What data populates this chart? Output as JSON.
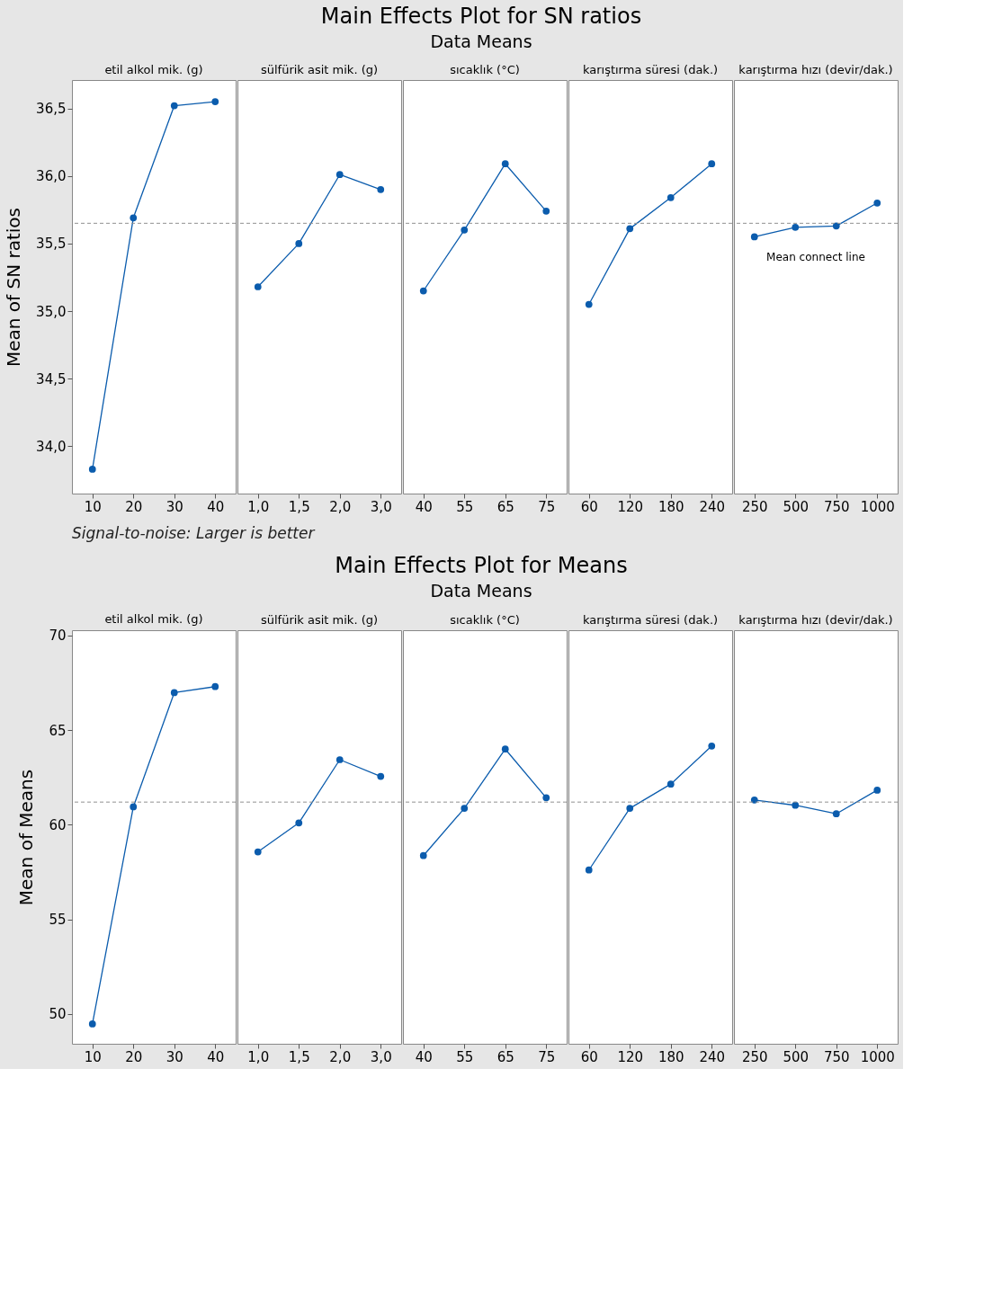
{
  "chart_data": [
    {
      "type": "other",
      "title": "Main Effects Plot for SN ratios",
      "subtitle": "Data Means",
      "annotations": [
        "Signal-to-noise: Larger is better"
      ]
    },
    {
      "type": "line",
      "title": "etil alkol mik. (g)",
      "ylabel": "Mean of SN ratios",
      "categories": [
        "10",
        "20",
        "30",
        "40"
      ],
      "series": [
        {
          "color": "#0b5cad",
          "values": [
            33.83,
            35.69,
            36.52,
            36.55
          ]
        }
      ],
      "marker": "circle",
      "ylim": [
        33.65,
        36.71
      ],
      "yticks": [
        {
          "value": 34.0,
          "label": "34,0"
        },
        {
          "value": 34.5,
          "label": "34,5"
        },
        {
          "value": 35.0,
          "label": "35,0"
        },
        {
          "value": 35.5,
          "label": "35,5"
        },
        {
          "value": 36.0,
          "label": "36,0"
        },
        {
          "value": 36.5,
          "label": "36,5"
        }
      ],
      "ref_lines": [
        {
          "axis": "y",
          "value": 35.65,
          "color": "#909090",
          "line_style": "dashed"
        }
      ]
    },
    {
      "type": "line",
      "title": "sülfürik asit mik. (g)",
      "categories": [
        "1,0",
        "1,5",
        "2,0",
        "3,0"
      ],
      "series": [
        {
          "color": "#0b5cad",
          "values": [
            35.18,
            35.5,
            36.01,
            35.9
          ]
        }
      ],
      "marker": "circle",
      "ylim": [
        33.65,
        36.71
      ],
      "tick_labels": "x",
      "ref_lines": [
        {
          "axis": "y",
          "value": 35.65,
          "color": "#909090",
          "line_style": "dashed"
        }
      ]
    },
    {
      "type": "line",
      "title": "sıcaklık (°C)",
      "categories": [
        "40",
        "55",
        "65",
        "75"
      ],
      "series": [
        {
          "color": "#0b5cad",
          "values": [
            35.15,
            35.6,
            36.09,
            35.74
          ]
        }
      ],
      "marker": "circle",
      "ylim": [
        33.65,
        36.71
      ],
      "tick_labels": "x",
      "ref_lines": [
        {
          "axis": "y",
          "value": 35.65,
          "color": "#909090",
          "line_style": "dashed"
        }
      ]
    },
    {
      "type": "line",
      "title": "karıştırma süresi (dak.)",
      "categories": [
        "60",
        "120",
        "180",
        "240"
      ],
      "series": [
        {
          "color": "#0b5cad",
          "values": [
            35.05,
            35.61,
            35.84,
            36.09
          ]
        }
      ],
      "marker": "circle",
      "ylim": [
        33.65,
        36.71
      ],
      "tick_labels": "x",
      "ref_lines": [
        {
          "axis": "y",
          "value": 35.65,
          "color": "#909090",
          "line_style": "dashed"
        }
      ]
    },
    {
      "type": "line",
      "title": "karıştırma hızı (devir/dak.)",
      "categories": [
        "250",
        "500",
        "750",
        "1000"
      ],
      "series": [
        {
          "color": "#0b5cad",
          "values": [
            35.55,
            35.62,
            35.63,
            35.8
          ]
        }
      ],
      "marker": "circle",
      "ylim": [
        33.65,
        36.71
      ],
      "tick_labels": "x",
      "ref_lines": [
        {
          "axis": "y",
          "value": 35.65,
          "color": "#909090",
          "line_style": "dashed",
          "label": "Mean connect line"
        }
      ]
    },
    {
      "type": "other",
      "title": "Main Effects Plot for Means",
      "subtitle": "Data Means"
    },
    {
      "type": "line",
      "title": "etil alkol mik. (g)",
      "ylabel": "Mean of Means",
      "categories": [
        "10",
        "20",
        "30",
        "40"
      ],
      "series": [
        {
          "color": "#0b5cad",
          "values": [
            49.48,
            60.95,
            66.98,
            67.3
          ]
        }
      ],
      "marker": "circle",
      "ylim": [
        48.43,
        70.28
      ],
      "yticks": [
        50,
        55,
        60,
        65,
        70
      ],
      "ref_lines": [
        {
          "axis": "y",
          "value": 61.2,
          "color": "#909090",
          "line_style": "dashed"
        }
      ]
    },
    {
      "type": "line",
      "title": "sülfürik asit mik. (g)",
      "categories": [
        "1,0",
        "1,5",
        "2,0",
        "3,0"
      ],
      "series": [
        {
          "color": "#0b5cad",
          "values": [
            58.57,
            60.1,
            63.44,
            62.56
          ]
        }
      ],
      "marker": "circle",
      "ylim": [
        48.43,
        70.28
      ],
      "tick_labels": "x",
      "ref_lines": [
        {
          "axis": "y",
          "value": 61.2,
          "color": "#909090",
          "line_style": "dashed"
        }
      ]
    },
    {
      "type": "line",
      "title": "sıcaklık (°C)",
      "categories": [
        "40",
        "55",
        "65",
        "75"
      ],
      "series": [
        {
          "color": "#0b5cad",
          "values": [
            58.37,
            60.87,
            64.0,
            61.43
          ]
        }
      ],
      "marker": "circle",
      "ylim": [
        48.43,
        70.28
      ],
      "tick_labels": "x",
      "ref_lines": [
        {
          "axis": "y",
          "value": 61.2,
          "color": "#909090",
          "line_style": "dashed"
        }
      ]
    },
    {
      "type": "line",
      "title": "karıştırma süresi (dak.)",
      "categories": [
        "60",
        "120",
        "180",
        "240"
      ],
      "series": [
        {
          "color": "#0b5cad",
          "values": [
            57.61,
            60.87,
            62.15,
            64.16
          ]
        }
      ],
      "marker": "circle",
      "ylim": [
        48.43,
        70.28
      ],
      "tick_labels": "x",
      "ref_lines": [
        {
          "axis": "y",
          "value": 61.2,
          "color": "#909090",
          "line_style": "dashed"
        }
      ]
    },
    {
      "type": "line",
      "title": "karıştırma hızı (devir/dak.)",
      "categories": [
        "250",
        "500",
        "750",
        "1000"
      ],
      "series": [
        {
          "color": "#0b5cad",
          "values": [
            61.31,
            61.03,
            60.58,
            61.83
          ]
        }
      ],
      "marker": "circle",
      "ylim": [
        48.43,
        70.28
      ],
      "tick_labels": "x",
      "ref_lines": [
        {
          "axis": "y",
          "value": 61.2,
          "color": "#909090",
          "line_style": "dashed"
        }
      ]
    }
  ]
}
